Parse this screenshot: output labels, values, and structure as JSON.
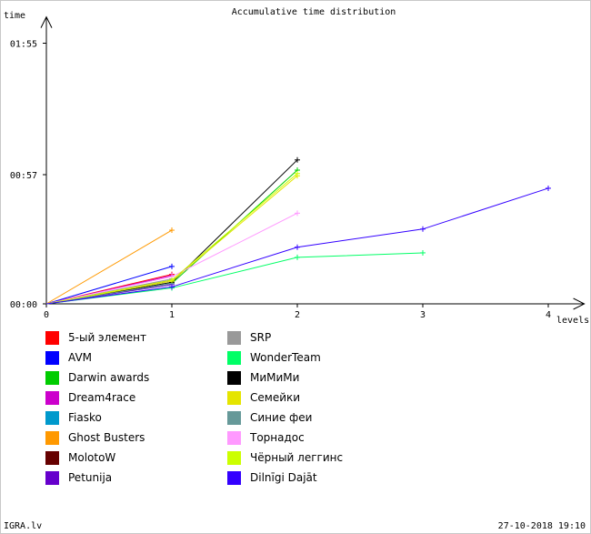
{
  "chart_data": {
    "type": "line",
    "title": "Accumulative time distribution",
    "xlabel": "levels",
    "ylabel": "time",
    "x_ticks": [
      "0",
      "1",
      "2",
      "3",
      "4"
    ],
    "y_ticks": [
      "00:00",
      "00:57",
      "01:55"
    ],
    "xlim": [
      0,
      4.2
    ],
    "ylim": [
      0,
      125
    ],
    "y_tick_values": [
      0,
      57,
      115
    ],
    "series": [
      {
        "name": "5-ый элемент",
        "color": "#ff0000",
        "x": [
          0,
          1
        ],
        "y": [
          0,
          13
        ]
      },
      {
        "name": "AVM",
        "color": "#0000ff",
        "x": [
          0,
          1
        ],
        "y": [
          0,
          16.5
        ]
      },
      {
        "name": "Darwin awards",
        "color": "#00cc00",
        "x": [
          0,
          1,
          2
        ],
        "y": [
          0,
          9,
          59
        ]
      },
      {
        "name": "Dream4race",
        "color": "#cc00cc",
        "x": [
          0,
          1
        ],
        "y": [
          0,
          12.5
        ]
      },
      {
        "name": "Fiasko",
        "color": "#0099cc",
        "x": [
          0,
          1
        ],
        "y": [
          0,
          7.5
        ]
      },
      {
        "name": "Ghost Busters",
        "color": "#ff9900",
        "x": [
          0,
          1
        ],
        "y": [
          0,
          32.5
        ]
      },
      {
        "name": "MolotoW",
        "color": "#660000",
        "x": [
          0,
          1
        ],
        "y": [
          0,
          10.5
        ]
      },
      {
        "name": "Petunija",
        "color": "#6600cc",
        "x": [
          0,
          1
        ],
        "y": [
          0,
          8.5
        ]
      },
      {
        "name": "SRP",
        "color": "#999999",
        "x": [
          0,
          1
        ],
        "y": [
          0,
          11
        ]
      },
      {
        "name": "WonderTeam",
        "color": "#00ff66",
        "x": [
          0,
          1,
          2,
          3
        ],
        "y": [
          0,
          7,
          20.5,
          22.5
        ]
      },
      {
        "name": "МиМиМи",
        "color": "#000000",
        "x": [
          0,
          1,
          2
        ],
        "y": [
          0,
          9.5,
          63.5
        ]
      },
      {
        "name": "Семейки",
        "color": "#e5e500",
        "x": [
          0,
          1,
          2
        ],
        "y": [
          0,
          10,
          56.5
        ]
      },
      {
        "name": "Синие феи",
        "color": "#669999",
        "x": [
          0,
          1
        ],
        "y": [
          0,
          9
        ]
      },
      {
        "name": "Торнадос",
        "color": "#ff99ff",
        "x": [
          0,
          1,
          2
        ],
        "y": [
          0,
          12,
          40
        ]
      },
      {
        "name": "Чёрный леггинс",
        "color": "#ccff00",
        "x": [
          0,
          1,
          2
        ],
        "y": [
          0,
          10.5,
          57.5
        ]
      },
      {
        "name": "Dilnīgi Dajāt",
        "color": "#3300ff",
        "x": [
          0,
          1,
          2,
          3,
          4
        ],
        "y": [
          0,
          7.5,
          25,
          33,
          51
        ]
      }
    ]
  },
  "footer": {
    "site": "IGRA.lv",
    "datetime": "27-10-2018 19:10"
  }
}
